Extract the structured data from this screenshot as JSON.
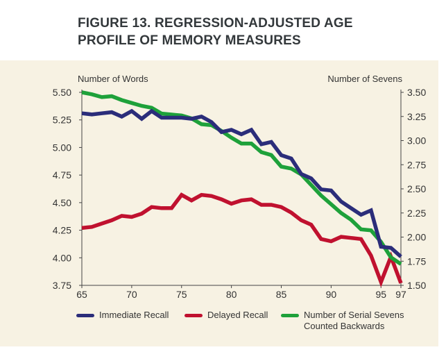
{
  "title": {
    "line1": "FIGURE 13. REGRESSION-ADJUSTED AGE",
    "line2": "PROFILE OF MEMORY MEASURES"
  },
  "colors": {
    "panel_bg": "#f7f2e3",
    "immediate": "#2b2d7a",
    "delayed": "#c0112f",
    "sevens": "#1ea13a"
  },
  "chart_data": {
    "type": "line",
    "ylabel_left": "Number of Words",
    "ylabel_right": "Number of Sevens",
    "ylim_left": [
      3.75,
      5.5
    ],
    "ylim_right": [
      1.5,
      3.5
    ],
    "xlim": [
      65,
      97
    ],
    "x_ticks": [
      65,
      70,
      75,
      80,
      85,
      90,
      95,
      97
    ],
    "y_left_ticks": [
      "5.50",
      "5.25",
      "5.00",
      "4.75",
      "4.50",
      "4.25",
      "4.00",
      "3.75"
    ],
    "y_right_ticks": [
      "3.50",
      "3.25",
      "3.00",
      "2.75",
      "2.50",
      "2.25",
      "2.00",
      "1.75",
      "1.50"
    ],
    "x": [
      65,
      66,
      67,
      68,
      69,
      70,
      71,
      72,
      73,
      74,
      75,
      76,
      77,
      78,
      79,
      80,
      81,
      82,
      83,
      84,
      85,
      86,
      87,
      88,
      89,
      90,
      91,
      92,
      93,
      94,
      95,
      96,
      97
    ],
    "series": [
      {
        "name": "Immediate Recall",
        "axis": "left",
        "color": "#2b2d7a",
        "values": [
          5.31,
          5.3,
          5.31,
          5.32,
          5.28,
          5.33,
          5.26,
          5.33,
          5.27,
          5.27,
          5.27,
          5.26,
          5.28,
          5.23,
          5.14,
          5.16,
          5.12,
          5.16,
          5.03,
          5.05,
          4.93,
          4.9,
          4.76,
          4.72,
          4.62,
          4.61,
          4.51,
          4.45,
          4.39,
          4.43,
          4.1,
          4.09,
          4.01
        ]
      },
      {
        "name": "Delayed Recall",
        "axis": "left",
        "color": "#c0112f",
        "values": [
          4.27,
          4.28,
          4.31,
          4.34,
          4.38,
          4.37,
          4.4,
          4.46,
          4.45,
          4.45,
          4.57,
          4.52,
          4.57,
          4.56,
          4.53,
          4.49,
          4.52,
          4.53,
          4.48,
          4.48,
          4.46,
          4.41,
          4.34,
          4.3,
          4.17,
          4.15,
          4.19,
          4.18,
          4.17,
          4.02,
          3.78,
          4.01,
          3.77
        ]
      },
      {
        "name": "Number of Serial Sevens Counted Backwards",
        "axis": "right",
        "color": "#1ea13a",
        "values": [
          3.5,
          3.48,
          3.45,
          3.46,
          3.42,
          3.39,
          3.36,
          3.34,
          3.28,
          3.27,
          3.26,
          3.23,
          3.17,
          3.16,
          3.1,
          3.03,
          2.97,
          2.97,
          2.88,
          2.85,
          2.73,
          2.71,
          2.65,
          2.54,
          2.43,
          2.34,
          2.25,
          2.18,
          2.08,
          2.07,
          1.95,
          1.79,
          1.72
        ]
      }
    ],
    "legend": [
      {
        "label": "Immediate Recall",
        "series": 0
      },
      {
        "label": "Delayed Recall",
        "series": 1
      },
      {
        "label": "Number of Serial Sevens Counted Backwards",
        "series": 2
      }
    ],
    "legend_position": "bottom"
  }
}
